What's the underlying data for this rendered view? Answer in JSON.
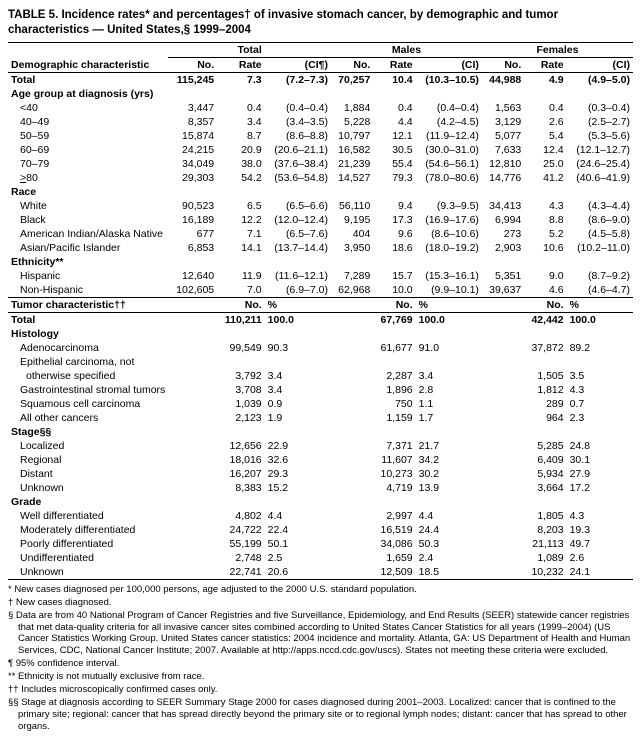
{
  "title": "TABLE 5. Incidence rates* and percentages† of invasive stomach cancer, by demographic and tumor characteristics — United States,§ 1999–2004",
  "group_headers": {
    "total": "Total",
    "males": "Males",
    "females": "Females"
  },
  "col_headers": {
    "demo": "Demographic characteristic",
    "no": "No.",
    "rate": "Rate",
    "ci": "(CI¶)",
    "ci_plain": "(CI)"
  },
  "rows1": [
    {
      "label": "Total",
      "bold": true,
      "t_no": "115,245",
      "t_rate": "7.3",
      "t_ci": "(7.2–7.3)",
      "m_no": "70,257",
      "m_rate": "10.4",
      "m_ci": "(10.3–10.5)",
      "f_no": "44,988",
      "f_rate": "4.9",
      "f_ci": "(4.9–5.0)"
    },
    {
      "label": "Age group at diagnosis (yrs)",
      "section": true
    },
    {
      "label": "<40",
      "indent": true,
      "t_no": "3,447",
      "t_rate": "0.4",
      "t_ci": "(0.4–0.4)",
      "m_no": "1,884",
      "m_rate": "0.4",
      "m_ci": "(0.4–0.4)",
      "f_no": "1,563",
      "f_rate": "0.4",
      "f_ci": "(0.3–0.4)"
    },
    {
      "label": "40–49",
      "indent": true,
      "t_no": "8,357",
      "t_rate": "3.4",
      "t_ci": "(3.4–3.5)",
      "m_no": "5,228",
      "m_rate": "4.4",
      "m_ci": "(4.2–4.5)",
      "f_no": "3,129",
      "f_rate": "2.6",
      "f_ci": "(2.5–2.7)"
    },
    {
      "label": "50–59",
      "indent": true,
      "t_no": "15,874",
      "t_rate": "8.7",
      "t_ci": "(8.6–8.8)",
      "m_no": "10,797",
      "m_rate": "12.1",
      "m_ci": "(11.9–12.4)",
      "f_no": "5,077",
      "f_rate": "5.4",
      "f_ci": "(5.3–5.6)"
    },
    {
      "label": "60–69",
      "indent": true,
      "t_no": "24,215",
      "t_rate": "20.9",
      "t_ci": "(20.6–21.1)",
      "m_no": "16,582",
      "m_rate": "30.5",
      "m_ci": "(30.0–31.0)",
      "f_no": "7,633",
      "f_rate": "12.4",
      "f_ci": "(12.1–12.7)"
    },
    {
      "label": "70–79",
      "indent": true,
      "t_no": "34,049",
      "t_rate": "38.0",
      "t_ci": "(37.6–38.4)",
      "m_no": "21,239",
      "m_rate": "55.4",
      "m_ci": "(54.6–56.1)",
      "f_no": "12,810",
      "f_rate": "25.0",
      "f_ci": "(24.6–25.4)"
    },
    {
      "label": ">80",
      "ge": true,
      "indent": true,
      "t_no": "29,303",
      "t_rate": "54.2",
      "t_ci": "(53.6–54.8)",
      "m_no": "14,527",
      "m_rate": "79.3",
      "m_ci": "(78.0–80.6)",
      "f_no": "14,776",
      "f_rate": "41.2",
      "f_ci": "(40.6–41.9)"
    },
    {
      "label": "Race",
      "section": true
    },
    {
      "label": "White",
      "indent": true,
      "t_no": "90,523",
      "t_rate": "6.5",
      "t_ci": "(6.5–6.6)",
      "m_no": "56,110",
      "m_rate": "9.4",
      "m_ci": "(9.3–9.5)",
      "f_no": "34,413",
      "f_rate": "4.3",
      "f_ci": "(4.3–4.4)"
    },
    {
      "label": "Black",
      "indent": true,
      "t_no": "16,189",
      "t_rate": "12.2",
      "t_ci": "(12.0–12.4)",
      "m_no": "9,195",
      "m_rate": "17.3",
      "m_ci": "(16.9–17.6)",
      "f_no": "6,994",
      "f_rate": "8.8",
      "f_ci": "(8.6–9.0)"
    },
    {
      "label": "American Indian/Alaska Native",
      "indent": true,
      "t_no": "677",
      "t_rate": "7.1",
      "t_ci": "(6.5–7.6)",
      "m_no": "404",
      "m_rate": "9.6",
      "m_ci": "(8.6–10.6)",
      "f_no": "273",
      "f_rate": "5.2",
      "f_ci": "(4.5–5.8)"
    },
    {
      "label": "Asian/Pacific Islander",
      "indent": true,
      "t_no": "6,853",
      "t_rate": "14.1",
      "t_ci": "(13.7–14.4)",
      "m_no": "3,950",
      "m_rate": "18.6",
      "m_ci": "(18.0–19.2)",
      "f_no": "2,903",
      "f_rate": "10.6",
      "f_ci": "(10.2–11.0)"
    },
    {
      "label": "Ethnicity**",
      "section": true
    },
    {
      "label": "Hispanic",
      "indent": true,
      "t_no": "12,640",
      "t_rate": "11.9",
      "t_ci": "(11.6–12.1)",
      "m_no": "7,289",
      "m_rate": "15.7",
      "m_ci": "(15.3–16.1)",
      "f_no": "5,351",
      "f_rate": "9.0",
      "f_ci": "(8.7–9.2)"
    },
    {
      "label": "Non-Hispanic",
      "indent": true,
      "t_no": "102,605",
      "t_rate": "7.0",
      "t_ci": "(6.9–7.0)",
      "m_no": "62,968",
      "m_rate": "10.0",
      "m_ci": "(9.9–10.1)",
      "f_no": "39,637",
      "f_rate": "4.6",
      "f_ci": "(4.6–4.7)"
    }
  ],
  "col_headers2": {
    "tumor": "Tumor characteristic††",
    "no": "No.",
    "pct": "%"
  },
  "rows2": [
    {
      "label": "Total",
      "bold": true,
      "t_no": "110,211",
      "t_pct": "100.0",
      "m_no": "67,769",
      "m_pct": "100.0",
      "f_no": "42,442",
      "f_pct": "100.0"
    },
    {
      "label": "Histology",
      "section": true
    },
    {
      "label": "Adenocarcinoma",
      "indent": true,
      "t_no": "99,549",
      "t_pct": "90.3",
      "m_no": "61,677",
      "m_pct": "91.0",
      "f_no": "37,872",
      "f_pct": "89.2"
    },
    {
      "label": "Epithelial carcinoma, not",
      "indent": true,
      "noval": true
    },
    {
      "label": "otherwise specified",
      "indent2": true,
      "t_no": "3,792",
      "t_pct": "3.4",
      "m_no": "2,287",
      "m_pct": "3.4",
      "f_no": "1,505",
      "f_pct": "3.5"
    },
    {
      "label": "Gastrointestinal stromal tumors",
      "indent": true,
      "t_no": "3,708",
      "t_pct": "3.4",
      "m_no": "1,896",
      "m_pct": "2.8",
      "f_no": "1,812",
      "f_pct": "4.3"
    },
    {
      "label": "Squamous cell carcinoma",
      "indent": true,
      "t_no": "1,039",
      "t_pct": "0.9",
      "m_no": "750",
      "m_pct": "1.1",
      "f_no": "289",
      "f_pct": "0.7"
    },
    {
      "label": "All other cancers",
      "indent": true,
      "t_no": "2,123",
      "t_pct": "1.9",
      "m_no": "1,159",
      "m_pct": "1.7",
      "f_no": "964",
      "f_pct": "2.3"
    },
    {
      "label": "Stage§§",
      "section": true
    },
    {
      "label": "Localized",
      "indent": true,
      "t_no": "12,656",
      "t_pct": "22.9",
      "m_no": "7,371",
      "m_pct": "21.7",
      "f_no": "5,285",
      "f_pct": "24.8"
    },
    {
      "label": "Regional",
      "indent": true,
      "t_no": "18,016",
      "t_pct": "32.6",
      "m_no": "11,607",
      "m_pct": "34.2",
      "f_no": "6,409",
      "f_pct": "30.1"
    },
    {
      "label": "Distant",
      "indent": true,
      "t_no": "16,207",
      "t_pct": "29.3",
      "m_no": "10,273",
      "m_pct": "30.2",
      "f_no": "5,934",
      "f_pct": "27.9"
    },
    {
      "label": "Unknown",
      "indent": true,
      "t_no": "8,383",
      "t_pct": "15.2",
      "m_no": "4,719",
      "m_pct": "13.9",
      "f_no": "3,664",
      "f_pct": "17.2"
    },
    {
      "label": "Grade",
      "section": true
    },
    {
      "label": "Well differentiated",
      "indent": true,
      "t_no": "4,802",
      "t_pct": "4.4",
      "m_no": "2,997",
      "m_pct": "4.4",
      "f_no": "1,805",
      "f_pct": "4.3"
    },
    {
      "label": "Moderately differentiated",
      "indent": true,
      "t_no": "24,722",
      "t_pct": "22.4",
      "m_no": "16,519",
      "m_pct": "24.4",
      "f_no": "8,203",
      "f_pct": "19.3"
    },
    {
      "label": "Poorly differentiated",
      "indent": true,
      "t_no": "55,199",
      "t_pct": "50.1",
      "m_no": "34,086",
      "m_pct": "50.3",
      "f_no": "21,113",
      "f_pct": "49.7"
    },
    {
      "label": "Undifferentiated",
      "indent": true,
      "t_no": "2,748",
      "t_pct": "2.5",
      "m_no": "1,659",
      "m_pct": "2.4",
      "f_no": "1,089",
      "f_pct": "2.6"
    },
    {
      "label": "Unknown",
      "indent": true,
      "t_no": "22,741",
      "t_pct": "20.6",
      "m_no": "12,509",
      "m_pct": "18.5",
      "f_no": "10,232",
      "f_pct": "24.1"
    }
  ],
  "footnotes": [
    "* New cases diagnosed per 100,000 persons, age adjusted to the 2000 U.S. standard population.",
    "† New cases diagnosed.",
    "§ Data are from 40 National Program of Cancer Registries and five Surveillance, Epidemiology, and End Results (SEER) statewide cancer registries that met data-quality criteria for all invasive cancer sites combined according to United States Cancer Statistics for all years (1999–2004) (US Cancer Statistics Working Group. United States cancer statistics: 2004 incidence and mortality. Atlanta, GA: US Department of Health and Human Services, CDC, National Cancer Institute; 2007. Available at http://apps.nccd.cdc.gov/uscs). States not meeting these criteria were excluded.",
    "¶ 95% confidence interval.",
    "** Ethnicity is not mutually exclusive from race.",
    "†† Includes microscopically confirmed cases only.",
    "§§ Stage at diagnosis according to SEER Summary Stage 2000 for cases diagnosed during 2001–2003. Localized: cancer that is confined to the primary site; regional: cancer that has spread directly beyond the primary site or to regional lymph nodes; distant: cancer that has spread to other organs."
  ]
}
